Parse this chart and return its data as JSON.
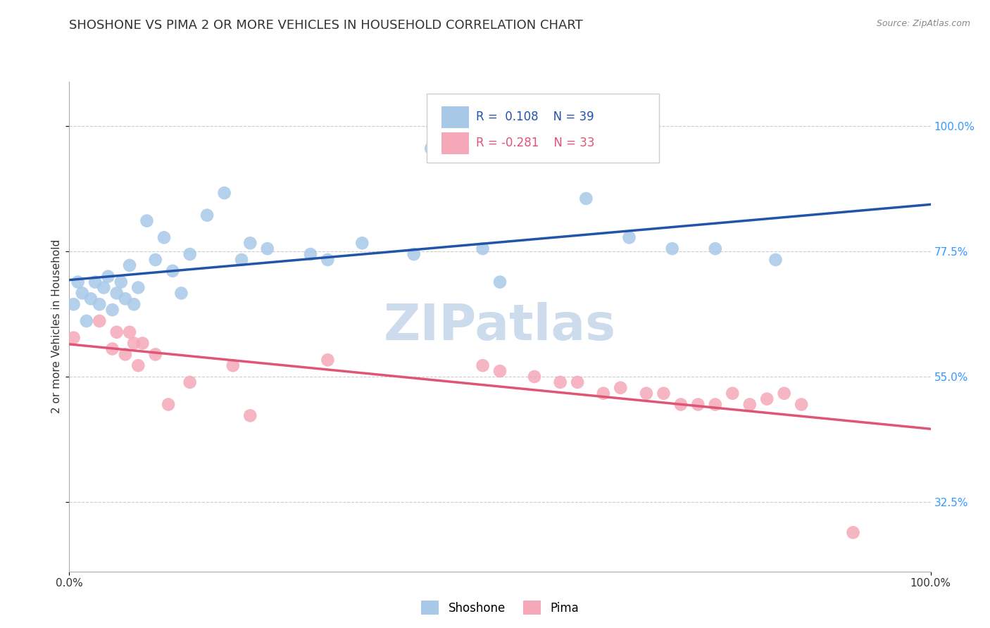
{
  "title": "SHOSHONE VS PIMA 2 OR MORE VEHICLES IN HOUSEHOLD CORRELATION CHART",
  "source": "Source: ZipAtlas.com",
  "ylabel": "2 or more Vehicles in Household",
  "xlabel": "",
  "xlim": [
    0.0,
    1.0
  ],
  "ylim": [
    0.2,
    1.08
  ],
  "yticks": [
    0.325,
    0.55,
    0.775,
    1.0
  ],
  "ytick_labels": [
    "32.5%",
    "55.0%",
    "77.5%",
    "100.0%"
  ],
  "xticks": [
    0.0,
    1.0
  ],
  "xtick_labels": [
    "0.0%",
    "100.0%"
  ],
  "shoshone_x": [
    0.005,
    0.01,
    0.015,
    0.02,
    0.025,
    0.03,
    0.035,
    0.04,
    0.045,
    0.05,
    0.055,
    0.06,
    0.065,
    0.07,
    0.075,
    0.08,
    0.09,
    0.1,
    0.11,
    0.12,
    0.13,
    0.14,
    0.16,
    0.18,
    0.2,
    0.21,
    0.23,
    0.28,
    0.3,
    0.34,
    0.4,
    0.42,
    0.48,
    0.5,
    0.6,
    0.65,
    0.7,
    0.75,
    0.82
  ],
  "shoshone_y": [
    0.68,
    0.72,
    0.7,
    0.65,
    0.69,
    0.72,
    0.68,
    0.71,
    0.73,
    0.67,
    0.7,
    0.72,
    0.69,
    0.75,
    0.68,
    0.71,
    0.83,
    0.76,
    0.8,
    0.74,
    0.7,
    0.77,
    0.84,
    0.88,
    0.76,
    0.79,
    0.78,
    0.77,
    0.76,
    0.79,
    0.77,
    0.96,
    0.78,
    0.72,
    0.87,
    0.8,
    0.78,
    0.78,
    0.76
  ],
  "pima_x": [
    0.005,
    0.035,
    0.05,
    0.055,
    0.065,
    0.07,
    0.075,
    0.08,
    0.085,
    0.1,
    0.115,
    0.14,
    0.19,
    0.21,
    0.3,
    0.48,
    0.5,
    0.54,
    0.57,
    0.59,
    0.62,
    0.64,
    0.67,
    0.69,
    0.71,
    0.73,
    0.75,
    0.77,
    0.79,
    0.81,
    0.83,
    0.85,
    0.91
  ],
  "pima_y": [
    0.62,
    0.65,
    0.6,
    0.63,
    0.59,
    0.63,
    0.61,
    0.57,
    0.61,
    0.59,
    0.5,
    0.54,
    0.57,
    0.48,
    0.58,
    0.57,
    0.56,
    0.55,
    0.54,
    0.54,
    0.52,
    0.53,
    0.52,
    0.52,
    0.5,
    0.5,
    0.5,
    0.52,
    0.5,
    0.51,
    0.52,
    0.5,
    0.27
  ],
  "shoshone_color": "#a8c8e8",
  "pima_color": "#f4a8b8",
  "shoshone_line_color": "#2255aa",
  "pima_line_color": "#e05575",
  "r_shoshone": 0.108,
  "n_shoshone": 39,
  "r_pima": -0.281,
  "n_pima": 33,
  "watermark": "ZIPatlas",
  "watermark_color": "#ccdcec",
  "grid_color": "#cccccc",
  "background_color": "#ffffff",
  "title_fontsize": 13,
  "axis_label_fontsize": 11,
  "tick_fontsize": 11,
  "source_fontsize": 9
}
